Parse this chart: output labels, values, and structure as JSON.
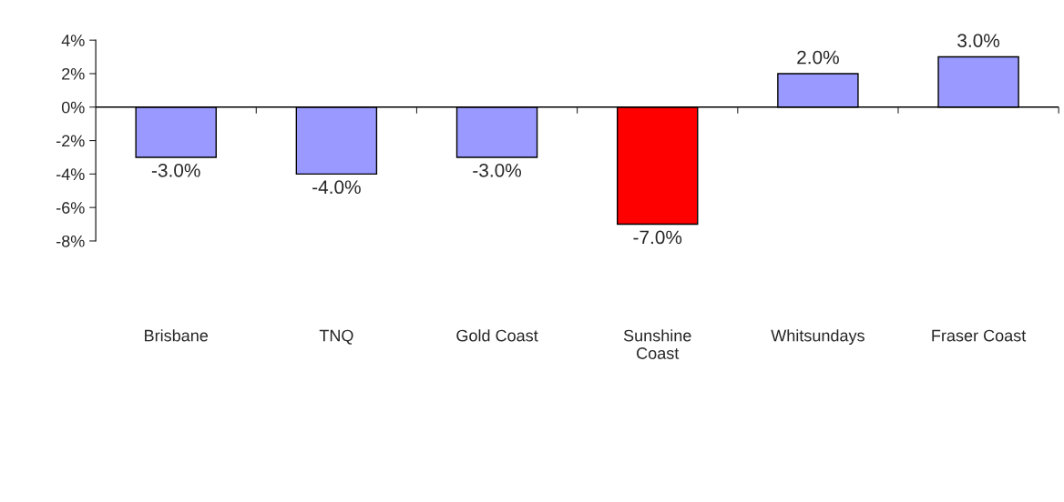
{
  "chart_data": {
    "type": "bar",
    "categories": [
      "Brisbane",
      "TNQ",
      "Gold Coast",
      "Sunshine\nCoast",
      "Whitsundays",
      "Fraser Coast"
    ],
    "values": [
      -3,
      -4,
      -3,
      -7,
      2,
      3
    ],
    "colors": [
      "#9999ff",
      "#9999ff",
      "#9999ff",
      "#ff0000",
      "#9999ff",
      "#9999ff"
    ],
    "value_labels": [
      "-3.0%",
      "-4.0%",
      "-3.0%",
      "-7.0%",
      "2.0%",
      "3.0%"
    ],
    "ylim": [
      -8,
      4
    ],
    "yticks": [
      {
        "value": -8,
        "label": "-8%"
      },
      {
        "value": -6,
        "label": "-6%"
      },
      {
        "value": -4,
        "label": "-4%"
      },
      {
        "value": -2,
        "label": "-2%"
      },
      {
        "value": 0,
        "label": "0%"
      },
      {
        "value": 2,
        "label": "2%"
      },
      {
        "value": 4,
        "label": "4%"
      }
    ],
    "ref_lines": [
      {
        "axis": "y",
        "value": 0
      }
    ],
    "grid": false,
    "legend": false
  }
}
